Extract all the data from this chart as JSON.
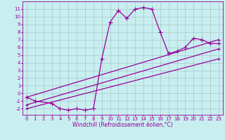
{
  "xlabel": "Windchill (Refroidissement éolien,°C)",
  "bg_color": "#c8eef0",
  "line_color": "#990099",
  "markersize": 2.2,
  "linewidth": 0.9,
  "series": [
    {
      "x": [
        0,
        1,
        3,
        4,
        5,
        6,
        7,
        8,
        9,
        10,
        11,
        12,
        13,
        14,
        15,
        16,
        17,
        18,
        19,
        20,
        21,
        22,
        23
      ],
      "y": [
        -0.5,
        -1.0,
        -1.3,
        -2.0,
        -2.2,
        -2.0,
        -2.2,
        -2.0,
        4.5,
        9.3,
        10.8,
        9.8,
        11.0,
        11.2,
        11.0,
        8.0,
        5.2,
        5.5,
        6.0,
        7.2,
        7.0,
        6.5,
        6.5
      ]
    },
    {
      "x": [
        0,
        23
      ],
      "y": [
        -0.5,
        7.0
      ]
    },
    {
      "x": [
        0,
        23
      ],
      "y": [
        -1.5,
        5.8
      ]
    },
    {
      "x": [
        0,
        23
      ],
      "y": [
        -2.0,
        4.5
      ]
    }
  ],
  "xlim": [
    -0.5,
    23.5
  ],
  "ylim": [
    -2.8,
    12.0
  ],
  "xticks": [
    0,
    1,
    2,
    3,
    4,
    5,
    6,
    7,
    8,
    9,
    10,
    11,
    12,
    13,
    14,
    15,
    16,
    17,
    18,
    19,
    20,
    21,
    22,
    23
  ],
  "yticks": [
    -2,
    -1,
    0,
    1,
    2,
    3,
    4,
    5,
    6,
    7,
    8,
    9,
    10,
    11
  ],
  "grid_color": "#a8c8cc",
  "tick_fontsize": 5.0,
  "xlabel_fontsize": 5.5
}
